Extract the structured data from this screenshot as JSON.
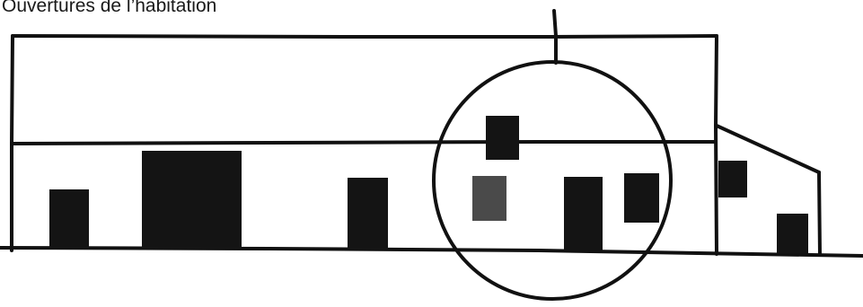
{
  "caption": "Ouvertures de l’habitation",
  "colors": {
    "ink": "#111111",
    "opening": "#141414",
    "highlighted_opening": "#4a4a4a",
    "background": "#ffffff"
  }
}
